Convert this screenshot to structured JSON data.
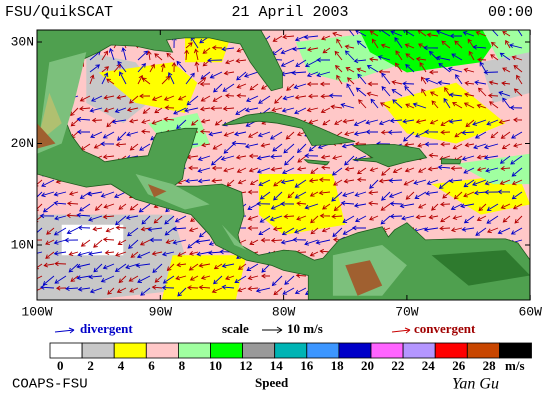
{
  "header": {
    "title": "FSU/QuikSCAT",
    "date": "21 April 2003",
    "time": "00:00"
  },
  "axes": {
    "lat_labels": [
      "30N",
      "20N",
      "10N"
    ],
    "lon_labels": [
      "100W",
      "90W",
      "80W",
      "70W",
      "60W"
    ]
  },
  "legend": {
    "divergent": "divergent",
    "scale": "scale",
    "scale_value": "10 m/s",
    "convergent": "convergent"
  },
  "colorbar": {
    "labels": [
      0,
      2,
      4,
      6,
      8,
      10,
      12,
      14,
      16,
      18,
      20,
      22,
      24,
      26,
      28
    ],
    "colors": [
      "#ffffff",
      "#c8c8c8",
      "#ffff00",
      "#ffc8c8",
      "#a0ffa0",
      "#00ff00",
      "#999999",
      "#00b4b4",
      "#3c96ff",
      "#0000c8",
      "#ff64ff",
      "#b496ff",
      "#ff0000",
      "#c84600",
      "#000000"
    ],
    "unit": "m/s",
    "title": "Speed"
  },
  "footer": {
    "credit": "COAPS-FSU",
    "author": "Yan Gu"
  }
}
